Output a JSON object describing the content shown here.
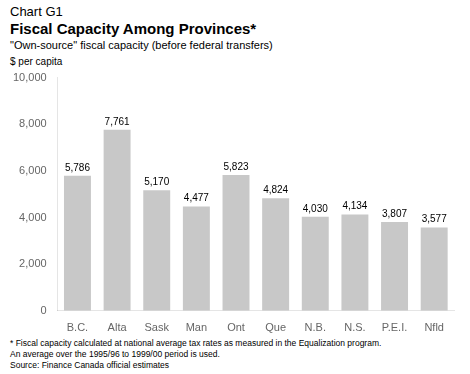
{
  "chart_data": {
    "type": "bar",
    "chart_label": "Chart G1",
    "title": "Fiscal Capacity Among Provinces*",
    "subtitle": "\"Own-source\" fiscal capacity (before federal transfers)",
    "ylabel": "$ per capita",
    "categories": [
      "B.C.",
      "Alta",
      "Sask",
      "Man",
      "Ont",
      "Que",
      "N.B.",
      "N.S.",
      "P.E.I.",
      "Nfld"
    ],
    "values": [
      5786,
      7761,
      5170,
      4477,
      5823,
      4824,
      4030,
      4134,
      3807,
      3577
    ],
    "value_labels": [
      "5,786",
      "7,761",
      "5,170",
      "4,477",
      "5,823",
      "4,824",
      "4,030",
      "4,134",
      "3,807",
      "3,577"
    ],
    "data_labels": true,
    "color": "#c8c8c8",
    "ylim": [
      0,
      10000
    ],
    "yticks": [
      0,
      {
        "value": 2000,
        "label": "2,000"
      },
      {
        "value": 4000,
        "label": "4,000"
      },
      {
        "value": 6000,
        "label": "6,000"
      },
      {
        "value": 8000,
        "label": "8,000"
      },
      {
        "value": 10000,
        "label": "10,000"
      }
    ],
    "grid": false,
    "footnotes": [
      "* Fiscal capacity calculated at national average tax rates as measured in the Equalization program.",
      "An average over the 1995/96 to 1999/00 period is used.",
      "Source: Finance Canada official estimates"
    ]
  }
}
